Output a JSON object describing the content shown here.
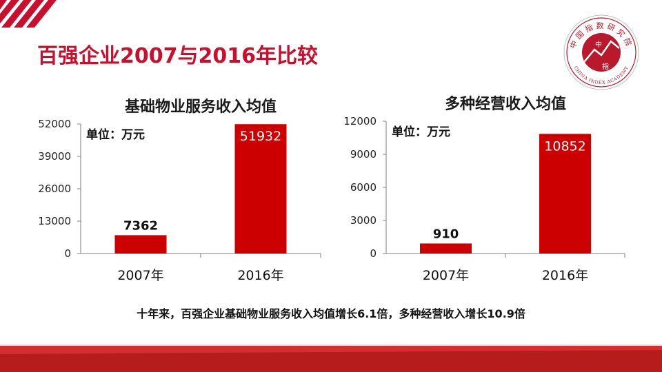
{
  "title": "百强企业2007与2016年比较",
  "logo": {
    "top_chars": "中国指数研究院",
    "center_top": "中",
    "center_bottom": "指",
    "bottom_text": "CHINA INDEX ACADEMY"
  },
  "conclusion": "十年来，百强企业基础物业服务收入均值增长6.1倍，多种经营收入增长10.9倍",
  "colors": {
    "accent": "#c8102e",
    "bar": "#cc0000",
    "band_dark": "#b71c1c"
  },
  "chart_data": [
    {
      "type": "bar",
      "title": "基础物业服务收入均值",
      "unit_label": "单位：万元",
      "categories": [
        "2007年",
        "2016年"
      ],
      "values": [
        7362,
        51932
      ],
      "value_labels": [
        "7362",
        "51932"
      ],
      "yticks": [
        "0",
        "13000",
        "26000",
        "39000",
        "52000"
      ],
      "ylim": [
        0,
        52000
      ],
      "grid": false,
      "legend": "none"
    },
    {
      "type": "bar",
      "title": "多种经营收入均值",
      "unit_label": "单位：万元",
      "categories": [
        "2007年",
        "2016年"
      ],
      "values": [
        910,
        10852
      ],
      "value_labels": [
        "910",
        "10852"
      ],
      "yticks": [
        "0",
        "3000",
        "6000",
        "9000",
        "12000"
      ],
      "ylim": [
        0,
        12000
      ],
      "grid": false,
      "legend": "none"
    }
  ]
}
